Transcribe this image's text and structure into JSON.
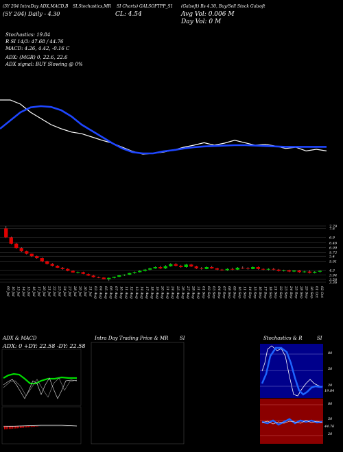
{
  "header": {
    "row1": [
      "(5Y 204 IntraDay ADX,MACD,B",
      "SI,Stochastics,MR",
      "SI Charts) GALSOFTPP_S1",
      "(Galsoft) Bs 4.30, Buy/Sell Stock Galsoft"
    ],
    "row2_left": "(5Y 204) Daily - 4.30",
    "row2_mid": "CL: 4.54",
    "row2_right": "Avg Vol: 0.006 M",
    "row3_right": "Day Vol: 0  M"
  },
  "stats": {
    "stochastics": "Stochastics: 19.84",
    "rsi": "R          SI 14/3: 47.68 / 44.76",
    "macd": "MACD: 4.26, 4.42, -0.16  C",
    "adx": "ADX:                              (MGR) 0, 22.6, 22.6",
    "adx_signal": "ADX signal:                           BUY Slowing @ 0%"
  },
  "colors": {
    "background": "#000000",
    "price_line": "#ffffff",
    "avg_line": "#1e46ff",
    "bull": "#00cc00",
    "bear": "#e00000",
    "stoch_panel": "#00008b",
    "rsi_panel": "#8b0000"
  },
  "panels": {
    "adx_title": "ADX  & MACD",
    "adx_readout": "ADX: 0  +DY: 22.58  -DY: 22.58",
    "intraday_title": "Intra  Day Trading Price  & MR",
    "intraday_si": "SI",
    "stoch_title": "Stochastics & R",
    "stoch_si": "SI",
    "stoch_ticks": [
      "80",
      "50",
      "20"
    ],
    "rsi_ticks": [
      "80",
      "50",
      "20"
    ],
    "stoch_value": "19.84",
    "rsi_value": "44.76"
  },
  "chart_data": [
    {
      "type": "line",
      "title": "",
      "series": [
        {
          "values": [
            5.6,
            5.6,
            5.5,
            5.3,
            5.15,
            5.0,
            4.9,
            4.82,
            4.78,
            4.7,
            4.62,
            4.55,
            4.45,
            4.35,
            4.28,
            4.3,
            4.33,
            4.38,
            4.45,
            4.5,
            4.56,
            4.5,
            4.55,
            4.62,
            4.56,
            4.5,
            4.52,
            4.48,
            4.42,
            4.45,
            4.36,
            4.4,
            4.36
          ]
        },
        {
          "values": [
            4.9,
            5.1,
            5.3,
            5.42,
            5.45,
            5.43,
            5.35,
            5.2,
            5.0,
            4.85,
            4.7,
            4.55,
            4.42,
            4.33,
            4.3,
            4.3,
            4.35,
            4.38,
            4.42,
            4.45,
            4.47,
            4.48,
            4.49,
            4.5,
            4.5,
            4.49,
            4.48,
            4.47,
            4.46,
            4.46,
            4.46,
            4.46,
            4.46
          ]
        }
      ]
    },
    {
      "type": "bar",
      "title": "",
      "ylim": [
        3.36,
        7.79
      ],
      "y_ticks": [
        7.79,
        7.6,
        6.9,
        6.46,
        6.09,
        5.72,
        5.4,
        5.01,
        4.3,
        3.94,
        3.58,
        3.36
      ],
      "categories": [
        "09 Jul",
        "10 Jul",
        "13 Jul",
        "14 Jul",
        "15 Jul",
        "16 Jul",
        "17 Jul",
        "20 Jul",
        "21 Jul",
        "22 Jul",
        "23 Jul",
        "24 Jul",
        "27 Jul",
        "28 Jul",
        "29 Jul",
        "30 Jul",
        "31 Jul",
        "03 Aug",
        "04 Aug",
        "05 Aug",
        "06 Aug",
        "07 Aug",
        "10 Aug",
        "11 Aug",
        "12 Aug",
        "13 Aug",
        "14 Aug",
        "17 Aug",
        "18 Aug",
        "19 Aug",
        "20 Aug",
        "21 Aug",
        "24 Aug",
        "25 Aug",
        "26 Aug",
        "27 Aug",
        "28 Aug",
        "31 Aug",
        "01 Sep",
        "02 Sep",
        "03 Sep",
        "04 Sep",
        "07 Sep",
        "08 Sep",
        "09 Sep",
        "10 Sep",
        "11 Sep",
        "14 Sep",
        "15 Sep",
        "16 Sep",
        "17 Sep",
        "18 Sep",
        "21 Sep",
        "22 Sep",
        "23 Sep",
        "24 Sep",
        "25 Sep",
        "28 Sep",
        "29 Sep",
        "30 Sep",
        "01 Oct",
        "02 Oct"
      ],
      "candles": [
        {
          "o": 7.6,
          "h": 7.79,
          "l": 6.85,
          "c": 6.9
        },
        {
          "o": 6.9,
          "h": 6.95,
          "l": 6.35,
          "c": 6.4
        },
        {
          "o": 6.4,
          "h": 6.45,
          "l": 6.0,
          "c": 6.05
        },
        {
          "o": 6.05,
          "h": 6.1,
          "l": 5.75,
          "c": 5.8
        },
        {
          "o": 5.8,
          "h": 5.85,
          "l": 5.55,
          "c": 5.6
        },
        {
          "o": 5.6,
          "h": 5.62,
          "l": 5.35,
          "c": 5.4
        },
        {
          "o": 5.4,
          "h": 5.45,
          "l": 5.2,
          "c": 5.25
        },
        {
          "o": 5.25,
          "h": 5.3,
          "l": 4.95,
          "c": 5.0
        },
        {
          "o": 5.0,
          "h": 5.05,
          "l": 4.75,
          "c": 4.8
        },
        {
          "o": 4.8,
          "h": 4.85,
          "l": 4.6,
          "c": 4.65
        },
        {
          "o": 4.65,
          "h": 4.7,
          "l": 4.48,
          "c": 4.5
        },
        {
          "o": 4.5,
          "h": 4.55,
          "l": 4.35,
          "c": 4.4
        },
        {
          "o": 4.4,
          "h": 4.45,
          "l": 4.22,
          "c": 4.25
        },
        {
          "o": 4.25,
          "h": 4.3,
          "l": 4.1,
          "c": 4.12
        },
        {
          "o": 4.1,
          "h": 4.2,
          "l": 4.05,
          "c": 4.15
        },
        {
          "o": 4.15,
          "h": 4.18,
          "l": 4.0,
          "c": 4.02
        },
        {
          "o": 4.0,
          "h": 4.05,
          "l": 3.85,
          "c": 3.88
        },
        {
          "o": 3.88,
          "h": 3.92,
          "l": 3.72,
          "c": 3.75
        },
        {
          "o": 3.75,
          "h": 3.8,
          "l": 3.68,
          "c": 3.72
        },
        {
          "o": 3.72,
          "h": 3.75,
          "l": 3.58,
          "c": 3.6
        },
        {
          "o": 3.6,
          "h": 3.72,
          "l": 3.45,
          "c": 3.7
        },
        {
          "o": 3.7,
          "h": 3.8,
          "l": 3.66,
          "c": 3.78
        },
        {
          "o": 3.78,
          "h": 3.92,
          "l": 3.75,
          "c": 3.9
        },
        {
          "o": 3.9,
          "h": 3.98,
          "l": 3.85,
          "c": 3.95
        },
        {
          "o": 3.95,
          "h": 4.1,
          "l": 3.92,
          "c": 4.08
        },
        {
          "o": 4.08,
          "h": 4.2,
          "l": 4.02,
          "c": 4.15
        },
        {
          "o": 4.15,
          "h": 4.3,
          "l": 4.12,
          "c": 4.25
        },
        {
          "o": 4.25,
          "h": 4.4,
          "l": 4.2,
          "c": 4.35
        },
        {
          "o": 4.35,
          "h": 4.5,
          "l": 4.3,
          "c": 4.45
        },
        {
          "o": 4.45,
          "h": 4.6,
          "l": 4.42,
          "c": 4.55
        },
        {
          "o": 4.55,
          "h": 4.65,
          "l": 4.4,
          "c": 4.45
        },
        {
          "o": 4.45,
          "h": 4.7,
          "l": 4.4,
          "c": 4.62
        },
        {
          "o": 4.62,
          "h": 4.85,
          "l": 4.58,
          "c": 4.78
        },
        {
          "o": 4.78,
          "h": 4.88,
          "l": 4.6,
          "c": 4.65
        },
        {
          "o": 4.65,
          "h": 4.72,
          "l": 4.5,
          "c": 4.55
        },
        {
          "o": 4.55,
          "h": 4.8,
          "l": 4.5,
          "c": 4.75
        },
        {
          "o": 4.75,
          "h": 4.8,
          "l": 4.55,
          "c": 4.6
        },
        {
          "o": 4.6,
          "h": 4.65,
          "l": 4.4,
          "c": 4.45
        },
        {
          "o": 4.45,
          "h": 4.55,
          "l": 4.35,
          "c": 4.4
        },
        {
          "o": 4.4,
          "h": 4.6,
          "l": 4.38,
          "c": 4.55
        },
        {
          "o": 4.55,
          "h": 4.65,
          "l": 4.42,
          "c": 4.45
        },
        {
          "o": 4.45,
          "h": 4.5,
          "l": 4.3,
          "c": 4.35
        },
        {
          "o": 4.35,
          "h": 4.4,
          "l": 4.25,
          "c": 4.3
        },
        {
          "o": 4.3,
          "h": 4.45,
          "l": 4.25,
          "c": 4.4
        },
        {
          "o": 4.4,
          "h": 4.5,
          "l": 4.3,
          "c": 4.35
        },
        {
          "o": 4.35,
          "h": 4.55,
          "l": 4.32,
          "c": 4.5
        },
        {
          "o": 4.5,
          "h": 4.6,
          "l": 4.4,
          "c": 4.45
        },
        {
          "o": 4.45,
          "h": 4.55,
          "l": 4.35,
          "c": 4.4
        },
        {
          "o": 4.4,
          "h": 4.6,
          "l": 4.38,
          "c": 4.55
        },
        {
          "o": 4.55,
          "h": 4.6,
          "l": 4.35,
          "c": 4.4
        },
        {
          "o": 4.4,
          "h": 4.45,
          "l": 4.3,
          "c": 4.35
        },
        {
          "o": 4.35,
          "h": 4.45,
          "l": 4.28,
          "c": 4.4
        },
        {
          "o": 4.4,
          "h": 4.48,
          "l": 4.3,
          "c": 4.35
        },
        {
          "o": 4.35,
          "h": 4.4,
          "l": 4.2,
          "c": 4.25
        },
        {
          "o": 4.25,
          "h": 4.35,
          "l": 4.2,
          "c": 4.3
        },
        {
          "o": 4.3,
          "h": 4.35,
          "l": 4.15,
          "c": 4.2
        },
        {
          "o": 4.2,
          "h": 4.3,
          "l": 4.15,
          "c": 4.28
        },
        {
          "o": 4.28,
          "h": 4.32,
          "l": 4.1,
          "c": 4.15
        },
        {
          "o": 4.15,
          "h": 4.25,
          "l": 4.1,
          "c": 4.2
        },
        {
          "o": 4.2,
          "h": 4.3,
          "l": 4.05,
          "c": 4.1
        },
        {
          "o": 4.1,
          "h": 4.22,
          "l": 4.05,
          "c": 4.18
        },
        {
          "o": 4.18,
          "h": 4.3,
          "l": 4.1,
          "c": 4.25
        }
      ]
    }
  ]
}
